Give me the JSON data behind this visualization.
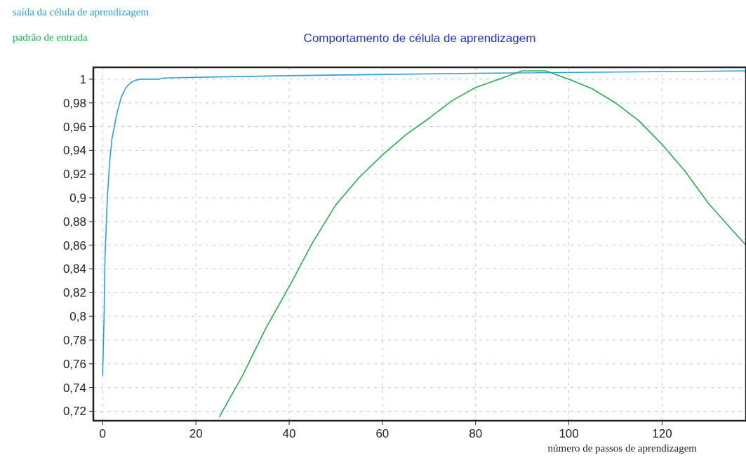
{
  "chart_data": {
    "type": "line",
    "title": "Comportamento de célula de aprendizagem",
    "xlabel": "número de passos de aprendizagem",
    "xlim": [
      -2,
      138
    ],
    "xticks": [
      0,
      20,
      40,
      60,
      80,
      100,
      120
    ],
    "ylim": [
      0.712,
      1.01
    ],
    "yticks": [
      {
        "value": 0.72,
        "label": "0,72"
      },
      {
        "value": 0.74,
        "label": "0,74"
      },
      {
        "value": 0.76,
        "label": "0,76"
      },
      {
        "value": 0.78,
        "label": "0,78"
      },
      {
        "value": 0.8,
        "label": "0,8"
      },
      {
        "value": 0.82,
        "label": "0,82"
      },
      {
        "value": 0.84,
        "label": "0,84"
      },
      {
        "value": 0.86,
        "label": "0,86"
      },
      {
        "value": 0.88,
        "label": "0,88"
      },
      {
        "value": 0.9,
        "label": "0,9"
      },
      {
        "value": 0.92,
        "label": "0,92"
      },
      {
        "value": 0.94,
        "label": "0,94"
      },
      {
        "value": 0.96,
        "label": "0,96"
      },
      {
        "value": 0.98,
        "label": "0,98"
      },
      {
        "value": 1,
        "label": "1"
      }
    ],
    "grid": true,
    "legend": "top left",
    "line_style": "solid",
    "series": [
      {
        "name": "saída da célula de aprendizagem",
        "color": "#2a9fe0",
        "x": [
          0,
          0.3,
          0.5,
          1,
          1.5,
          2,
          3,
          4,
          5,
          6,
          7,
          8,
          12,
          13,
          40,
          80,
          138
        ],
        "values": [
          0.75,
          0.8,
          0.85,
          0.9,
          0.93,
          0.95,
          0.97,
          0.985,
          0.993,
          0.997,
          0.999,
          1.0,
          1.0,
          1.001,
          1.003,
          1.005,
          1.007
        ]
      },
      {
        "name": "padrão de entrada",
        "color": "#22b04a",
        "x": [
          25,
          30,
          35,
          40,
          45,
          50,
          55,
          60,
          65,
          70,
          75,
          80,
          85,
          90,
          95,
          100,
          105,
          110,
          115,
          120,
          125,
          130,
          135,
          138
        ],
        "values": [
          0.715,
          0.75,
          0.79,
          0.825,
          0.862,
          0.894,
          0.917,
          0.936,
          0.953,
          0.967,
          0.982,
          0.993,
          1.0,
          1.007,
          1.007,
          1.0,
          0.992,
          0.98,
          0.965,
          0.945,
          0.922,
          0.895,
          0.873,
          0.86
        ]
      }
    ]
  }
}
